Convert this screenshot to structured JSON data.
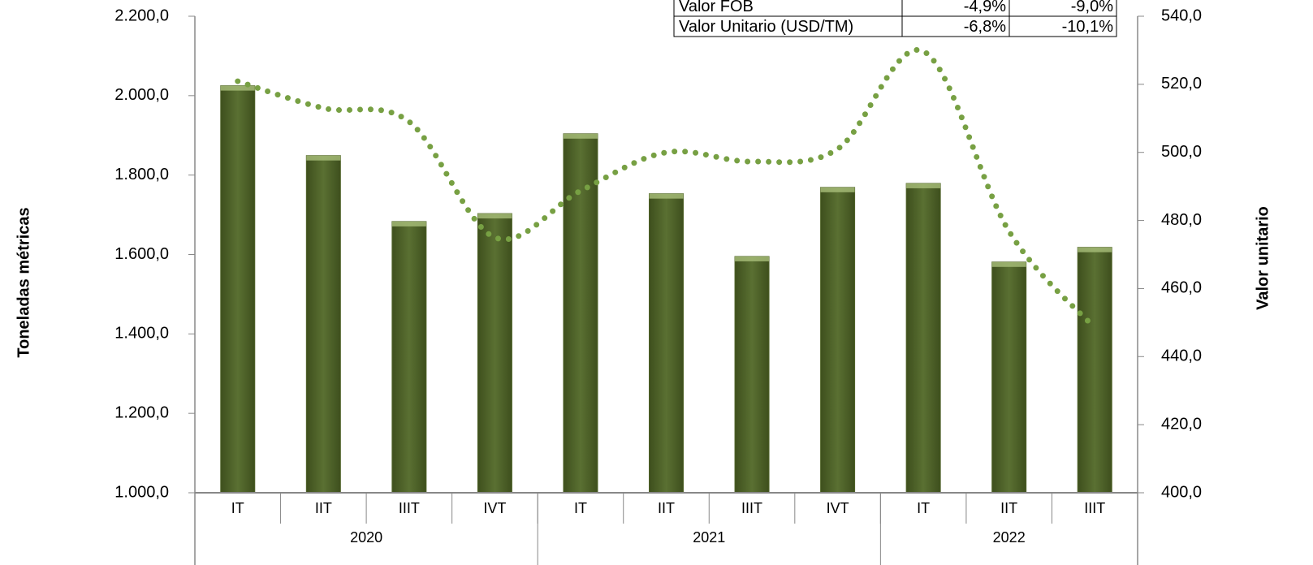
{
  "chart_data": {
    "type": "bar_line",
    "y_label": "Toneladas métricas",
    "y2_label": "Valor unitario",
    "categories": [
      "IT",
      "IIT",
      "IIIT",
      "IVT",
      "IT",
      "IIT",
      "IIIT",
      "IVT",
      "IT",
      "IIT",
      "IIIT"
    ],
    "groups": [
      {
        "name": "2020",
        "size": 4
      },
      {
        "name": "2021",
        "size": 4
      },
      {
        "name": "2022",
        "size": 3
      }
    ],
    "series": [
      {
        "name": "Toneladas métricas",
        "type": "bar",
        "color": "#4f6228",
        "values": [
          2025,
          1849,
          1683,
          1703,
          1904,
          1753,
          1595,
          1769,
          1779,
          1581,
          1618
        ]
      },
      {
        "name": "Valor unitario",
        "type": "line",
        "axis": "y2",
        "color": "#77a043",
        "values": [
          520.9,
          513,
          509,
          475,
          488.7,
          500,
          497.3,
          501,
          529.7,
          476.8,
          448.4
        ]
      }
    ],
    "ylim": [
      1000,
      2200
    ],
    "yticks": [
      {
        "value": 1000,
        "label": "1.000,0"
      },
      {
        "value": 1200,
        "label": "1.200,0"
      },
      {
        "value": 1400,
        "label": "1.400,0"
      },
      {
        "value": 1600,
        "label": "1.600,0"
      },
      {
        "value": 1800,
        "label": "1.800,0"
      },
      {
        "value": 2000,
        "label": "2.000,0"
      },
      {
        "value": 2200,
        "label": "2.200,0"
      }
    ],
    "y2lim": [
      400,
      540
    ],
    "y2ticks": [
      {
        "value": 400,
        "label": "400,0"
      },
      {
        "value": 420,
        "label": "420,0"
      },
      {
        "value": 440,
        "label": "440,0"
      },
      {
        "value": 460,
        "label": "460,0"
      },
      {
        "value": 480,
        "label": "480,0"
      },
      {
        "value": 500,
        "label": "500,0"
      },
      {
        "value": 520,
        "label": "520,0"
      },
      {
        "value": 540,
        "label": "540,0"
      }
    ],
    "table": {
      "rows": [
        [
          "Valor FOB",
          "-4,9%",
          "-9,0%"
        ],
        [
          "Valor Unitario (USD/TM)",
          "-6,8%",
          "-10,1%"
        ]
      ]
    }
  }
}
